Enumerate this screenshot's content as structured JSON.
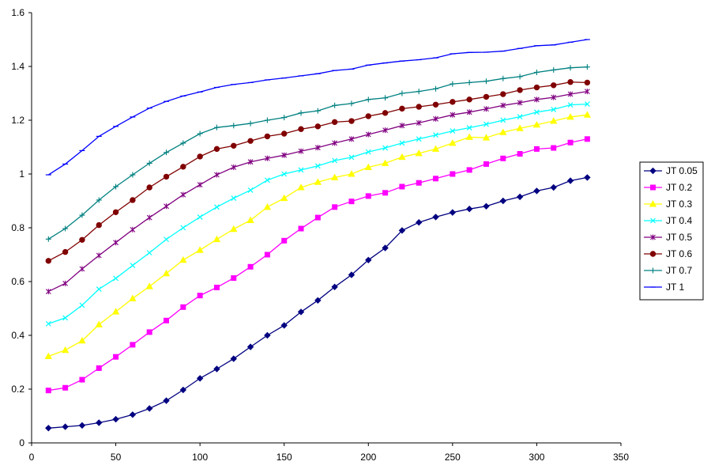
{
  "chart_data": {
    "type": "line",
    "title": "",
    "xlabel": "",
    "ylabel": "",
    "xlim": [
      0,
      350
    ],
    "ylim": [
      0,
      1.6
    ],
    "x_ticks": [
      "0",
      "50",
      "100",
      "150",
      "200",
      "250",
      "300",
      "350"
    ],
    "y_ticks": [
      "0",
      "0.2",
      "0.4",
      "0.6",
      "0.8",
      "1",
      "1.2",
      "1.4",
      "1.6"
    ],
    "grid": false,
    "legend_position": "right",
    "x": [
      10,
      20,
      30,
      40,
      50,
      60,
      70,
      80,
      90,
      100,
      110,
      120,
      130,
      140,
      150,
      160,
      170,
      180,
      190,
      200,
      210,
      220,
      230,
      240,
      250,
      260,
      270,
      280,
      290,
      300,
      310,
      320,
      330
    ],
    "series": [
      {
        "name": "JT 0.05",
        "color": "#000080",
        "marker": "diamond",
        "values": [
          0.055,
          0.06,
          0.065,
          0.075,
          0.088,
          0.105,
          0.128,
          0.157,
          0.197,
          0.24,
          0.275,
          0.313,
          0.357,
          0.4,
          0.437,
          0.487,
          0.53,
          0.58,
          0.625,
          0.68,
          0.725,
          0.79,
          0.82,
          0.84,
          0.857,
          0.87,
          0.88,
          0.9,
          0.915,
          0.937,
          0.95,
          0.975,
          0.987
        ]
      },
      {
        "name": "JT 0.2",
        "color": "#ff00ff",
        "marker": "square",
        "values": [
          0.195,
          0.205,
          0.235,
          0.278,
          0.32,
          0.365,
          0.412,
          0.455,
          0.505,
          0.548,
          0.578,
          0.613,
          0.655,
          0.7,
          0.752,
          0.797,
          0.838,
          0.877,
          0.898,
          0.918,
          0.93,
          0.953,
          0.967,
          0.983,
          1.0,
          1.015,
          1.037,
          1.058,
          1.075,
          1.093,
          1.097,
          1.117,
          1.13
        ]
      },
      {
        "name": "JT 0.3",
        "color": "#ffff00",
        "marker": "triangle",
        "values": [
          0.322,
          0.345,
          0.38,
          0.44,
          0.488,
          0.537,
          0.582,
          0.63,
          0.68,
          0.717,
          0.757,
          0.795,
          0.828,
          0.877,
          0.91,
          0.95,
          0.97,
          0.987,
          1.0,
          1.025,
          1.04,
          1.063,
          1.077,
          1.093,
          1.115,
          1.137,
          1.135,
          1.155,
          1.17,
          1.183,
          1.197,
          1.212,
          1.22
        ]
      },
      {
        "name": "JT 0.4",
        "color": "#00ffff",
        "marker": "x",
        "values": [
          0.443,
          0.465,
          0.512,
          0.572,
          0.612,
          0.66,
          0.707,
          0.757,
          0.8,
          0.84,
          0.877,
          0.91,
          0.94,
          0.977,
          1.0,
          1.015,
          1.03,
          1.05,
          1.062,
          1.082,
          1.097,
          1.115,
          1.13,
          1.145,
          1.16,
          1.172,
          1.185,
          1.2,
          1.213,
          1.23,
          1.24,
          1.257,
          1.26
        ]
      },
      {
        "name": "JT 0.5",
        "color": "#800080",
        "marker": "star",
        "values": [
          0.563,
          0.593,
          0.647,
          0.697,
          0.745,
          0.793,
          0.838,
          0.88,
          0.923,
          0.96,
          0.997,
          1.025,
          1.045,
          1.058,
          1.07,
          1.085,
          1.098,
          1.115,
          1.13,
          1.147,
          1.163,
          1.18,
          1.19,
          1.205,
          1.22,
          1.23,
          1.242,
          1.255,
          1.265,
          1.277,
          1.285,
          1.297,
          1.307
        ]
      },
      {
        "name": "JT 0.6",
        "color": "#800000",
        "marker": "circle",
        "values": [
          0.677,
          0.71,
          0.755,
          0.81,
          0.858,
          0.903,
          0.95,
          0.99,
          1.027,
          1.065,
          1.093,
          1.105,
          1.123,
          1.14,
          1.15,
          1.167,
          1.177,
          1.193,
          1.197,
          1.215,
          1.227,
          1.243,
          1.25,
          1.258,
          1.268,
          1.277,
          1.287,
          1.297,
          1.312,
          1.322,
          1.33,
          1.342,
          1.34
        ]
      },
      {
        "name": "JT 0.7",
        "color": "#008080",
        "marker": "plus",
        "values": [
          0.758,
          0.797,
          0.847,
          0.903,
          0.953,
          0.997,
          1.04,
          1.08,
          1.115,
          1.15,
          1.173,
          1.18,
          1.188,
          1.2,
          1.21,
          1.227,
          1.235,
          1.255,
          1.262,
          1.277,
          1.283,
          1.3,
          1.307,
          1.317,
          1.335,
          1.34,
          1.345,
          1.355,
          1.362,
          1.378,
          1.387,
          1.395,
          1.398
        ]
      },
      {
        "name": "JT 1",
        "color": "#0000ff",
        "marker": "dash",
        "values": [
          0.997,
          1.037,
          1.087,
          1.14,
          1.177,
          1.212,
          1.245,
          1.27,
          1.29,
          1.305,
          1.322,
          1.333,
          1.34,
          1.35,
          1.357,
          1.365,
          1.373,
          1.385,
          1.39,
          1.405,
          1.413,
          1.42,
          1.425,
          1.432,
          1.447,
          1.452,
          1.453,
          1.457,
          1.467,
          1.477,
          1.48,
          1.49,
          1.5
        ]
      }
    ]
  }
}
